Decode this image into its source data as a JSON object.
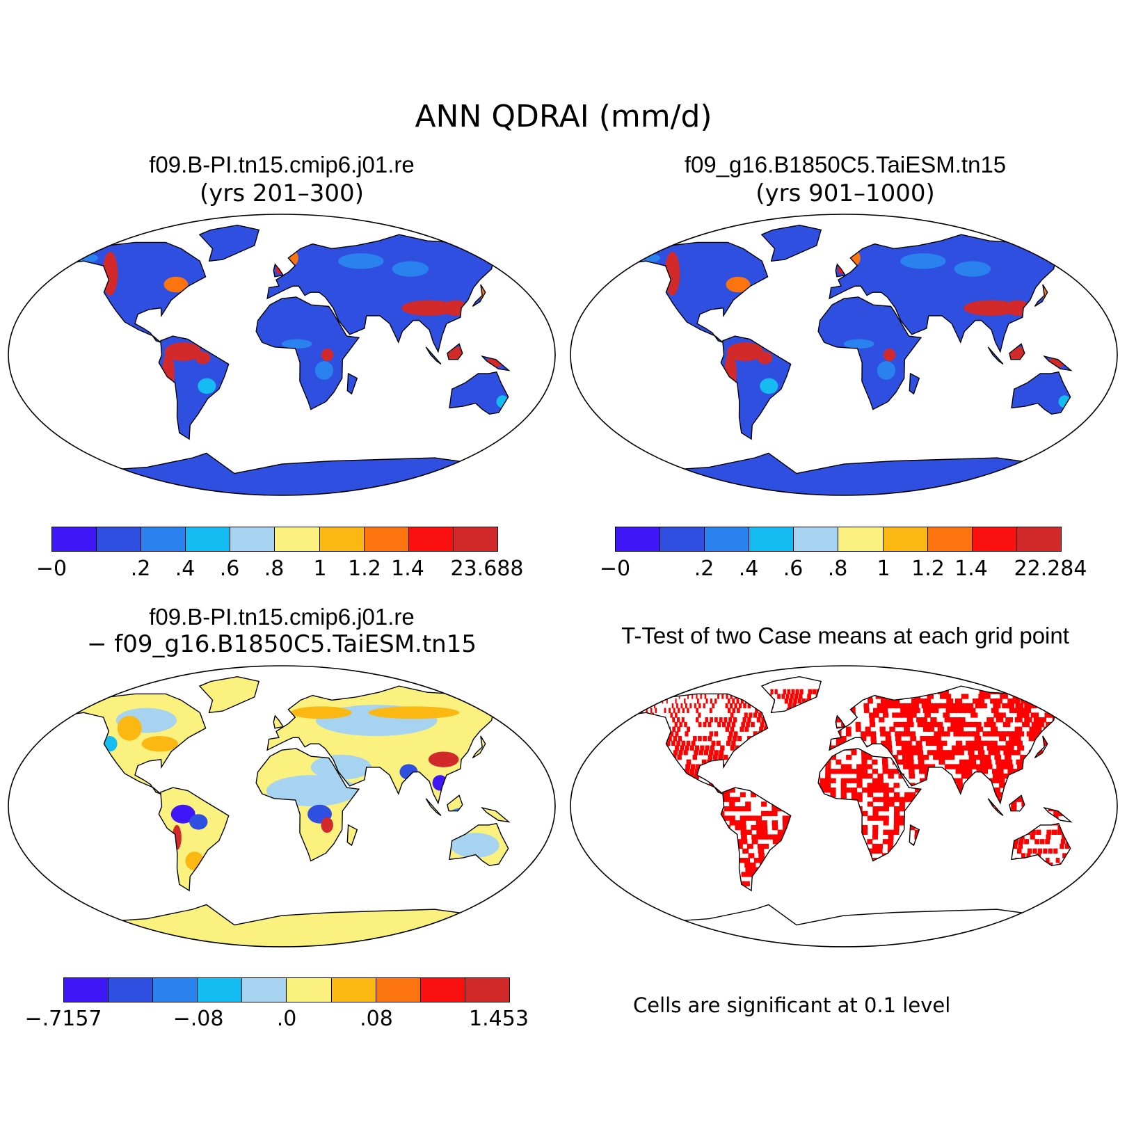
{
  "title": "ANN QDRAI (mm/d)",
  "colors": {
    "levels": [
      "#3f16f5",
      "#2f4fe0",
      "#2a82ee",
      "#14bcf2",
      "#a6d4f0",
      "#fbf17f",
      "#fbb812",
      "#fb7410",
      "#fb1010",
      "#d22a2a"
    ],
    "significant": "#ff0000"
  },
  "panels": {
    "top_left": {
      "case": "f09.B-PI.tn15.cmip6.j01.re",
      "years": "(yrs 201–300)",
      "colorbar_labels": [
        "−0",
        ".2",
        ".4",
        ".6",
        ".8",
        "1",
        "1.2",
        "1.4",
        "23.688"
      ]
    },
    "top_right": {
      "case": "f09_g16.B1850C5.TaiESM.tn15",
      "years": "(yrs 901–1000)",
      "colorbar_labels": [
        "−0",
        ".2",
        ".4",
        ".6",
        ".8",
        "1",
        "1.2",
        "1.4",
        "22.284"
      ]
    },
    "bottom_left": {
      "case": "f09.B-PI.tn15.cmip6.j01.re",
      "minus_case": "− f09_g16.B1850C5.TaiESM.tn15",
      "colorbar_labels": [
        "−.7157",
        "−.08",
        ".0",
        ".08",
        "1.453"
      ]
    },
    "bottom_right": {
      "title": "T-Test of two Case means at each grid point",
      "note": "Cells are significant at 0.1 level"
    }
  }
}
